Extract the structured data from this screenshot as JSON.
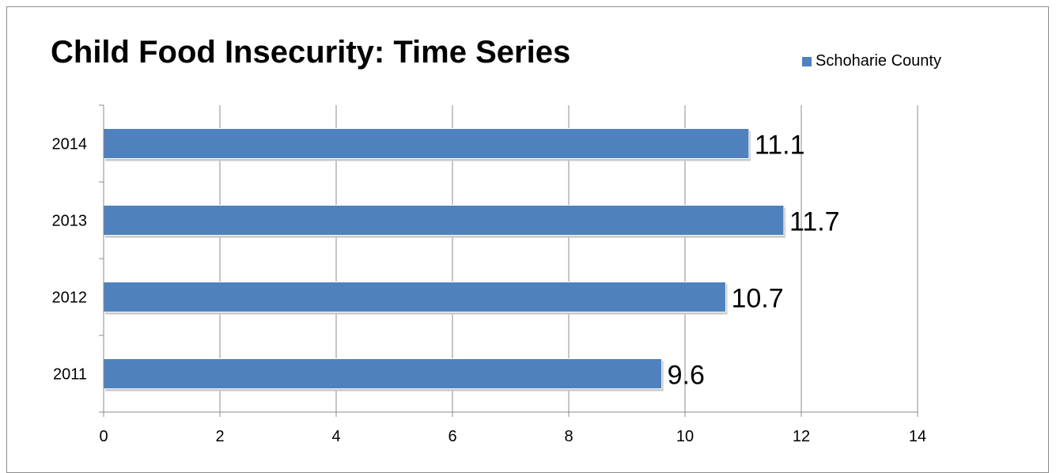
{
  "chart_data": {
    "type": "bar",
    "orientation": "horizontal",
    "title": "Child Food Insecurity: Time Series",
    "categories": [
      "2011",
      "2012",
      "2013",
      "2014"
    ],
    "series": [
      {
        "name": "Schoharie County",
        "values": [
          9.6,
          10.7,
          11.7,
          11.1
        ],
        "color": "#4f81bd"
      }
    ],
    "data_labels": [
      "9.6",
      "10.7",
      "11.7",
      "11.1"
    ],
    "xlim": [
      0,
      14
    ],
    "xticks": [
      "0",
      "2",
      "4",
      "6",
      "8",
      "10",
      "12",
      "14"
    ],
    "xlabel": "",
    "ylabel": "",
    "grid": "vertical",
    "legend_position": "top-right"
  },
  "colors": {
    "bar": "#4f81bd",
    "grid": "#8c8c8c",
    "axis": "#8c8c8c",
    "text": "#000000"
  }
}
